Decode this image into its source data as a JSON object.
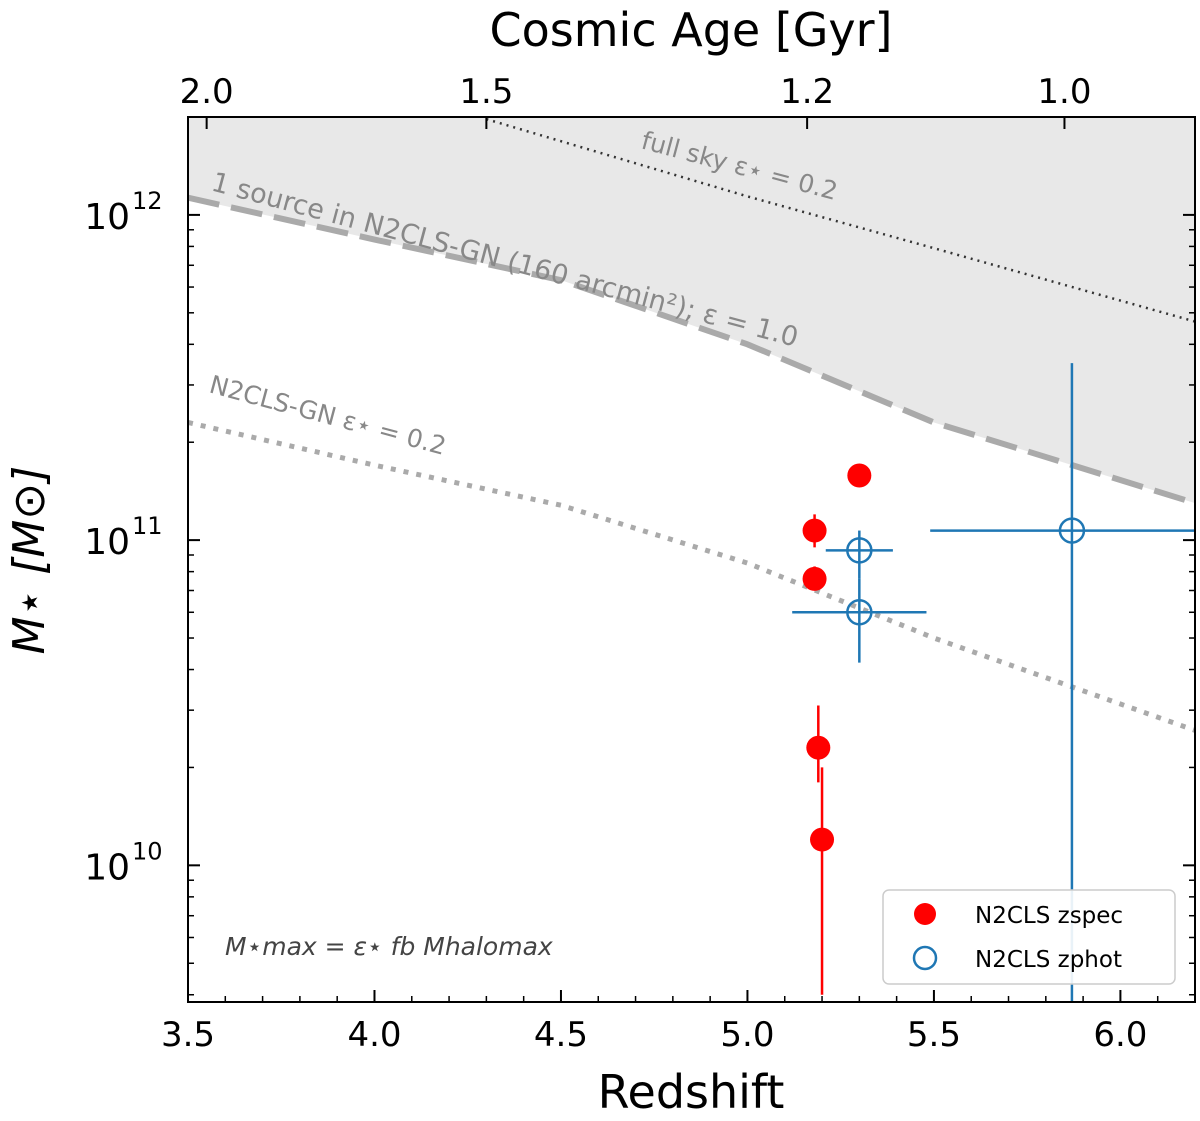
{
  "chart_data": {
    "type": "scatter",
    "xlabel": "Redshift",
    "ylabel": "M⋆ [M⊙]",
    "top_xlabel": "Cosmic Age [Gyr]",
    "xlim": [
      3.5,
      6.2
    ],
    "ylim": [
      3800000000.0,
      2000000000000.0
    ],
    "yscale": "log",
    "x_ticks": [
      3.5,
      4.0,
      4.5,
      5.0,
      5.5,
      6.0
    ],
    "x_tick_labels": [
      "3.5",
      "4.0",
      "4.5",
      "5.0",
      "5.5",
      "6.0"
    ],
    "y_ticks": [
      10000000000.0,
      100000000000.0,
      1000000000000.0
    ],
    "y_tick_labels": [
      {
        "base": "10",
        "exp": "10"
      },
      {
        "base": "10",
        "exp": "11"
      },
      {
        "base": "10",
        "exp": "12"
      }
    ],
    "top_ticks": [
      {
        "z": 3.55,
        "label": "2.0"
      },
      {
        "z": 4.3,
        "label": "1.5"
      },
      {
        "z": 5.16,
        "label": "1.2"
      },
      {
        "z": 5.85,
        "label": "1.0"
      }
    ],
    "series": [
      {
        "name": "N2CLS zspec",
        "color": "#ff0000",
        "marker": "filled-circle",
        "points": [
          {
            "x": 5.18,
            "y": 107000000000.0,
            "ylo": 95000000000.0,
            "yhi": 120000000000.0
          },
          {
            "x": 5.18,
            "y": 76000000000.0,
            "ylo": 70000000000.0,
            "yhi": 83000000000.0
          },
          {
            "x": 5.3,
            "y": 158000000000.0,
            "ylo": 150000000000.0,
            "yhi": 166000000000.0
          },
          {
            "x": 5.19,
            "y": 23000000000.0,
            "ylo": 18000000000.0,
            "yhi": 31000000000.0
          },
          {
            "x": 5.2,
            "y": 12000000000.0,
            "ylo": 4000000000.0,
            "yhi": 20000000000.0
          }
        ]
      },
      {
        "name": "N2CLS zphot",
        "color": "#1f77b4",
        "marker": "open-circle",
        "points": [
          {
            "x": 5.3,
            "y": 93000000000.0,
            "xlo": 5.21,
            "xhi": 5.39,
            "ylo": 76000000000.0,
            "yhi": 107000000000.0
          },
          {
            "x": 5.3,
            "y": 60000000000.0,
            "xlo": 5.12,
            "xhi": 5.48,
            "ylo": 42000000000.0,
            "yhi": 76000000000.0
          },
          {
            "x": 5.87,
            "y": 107000000000.0,
            "xlo": 5.49,
            "xhi": 6.2,
            "ylo": 3800000000.0,
            "yhi": 350000000000.0
          }
        ]
      }
    ],
    "curves": [
      {
        "label": "full sky ε⋆ = 0.2",
        "style": "fine-dotted",
        "color": "#333333",
        "points": [
          [
            4.3,
            1970000000000.0
          ],
          [
            5.0,
            1140000000000.0
          ],
          [
            5.5,
            790000000000.0
          ],
          [
            6.2,
            470000000000.0
          ]
        ]
      },
      {
        "label": "1 source in N2CLS-GN (160 arcmin²); ε = 1.0",
        "style": "dashed",
        "color": "#aaaaaa",
        "points": [
          [
            3.5,
            1130000000000.0
          ],
          [
            4.0,
            840000000000.0
          ],
          [
            4.5,
            630000000000.0
          ],
          [
            5.0,
            400000000000.0
          ],
          [
            5.5,
            230000000000.0
          ],
          [
            6.2,
            130000000000.0
          ]
        ]
      },
      {
        "label": "N2CLS-GN ε⋆ = 0.2",
        "style": "dotted",
        "color": "#aaaaaa",
        "points": [
          [
            3.5,
            230000000000.0
          ],
          [
            4.0,
            170000000000.0
          ],
          [
            4.5,
            128000000000.0
          ],
          [
            5.0,
            85000000000.0
          ],
          [
            5.5,
            50000000000.0
          ],
          [
            6.2,
            26000000000.0
          ]
        ]
      }
    ],
    "shaded_region": {
      "color": "#e8e8e8",
      "edges": [
        [
          3.5,
          1130000000000.0
        ],
        [
          4.0,
          840000000000.0
        ],
        [
          4.5,
          630000000000.0
        ],
        [
          5.0,
          400000000000.0
        ],
        [
          5.5,
          230000000000.0
        ],
        [
          6.2,
          130000000000.0
        ]
      ]
    },
    "annotations": {
      "formula": "M⋆max = ε⋆ fb Mhalomax"
    },
    "legend": {
      "placement": "bottom-right",
      "entries": [
        "N2CLS zspec",
        "N2CLS zphot"
      ]
    }
  }
}
